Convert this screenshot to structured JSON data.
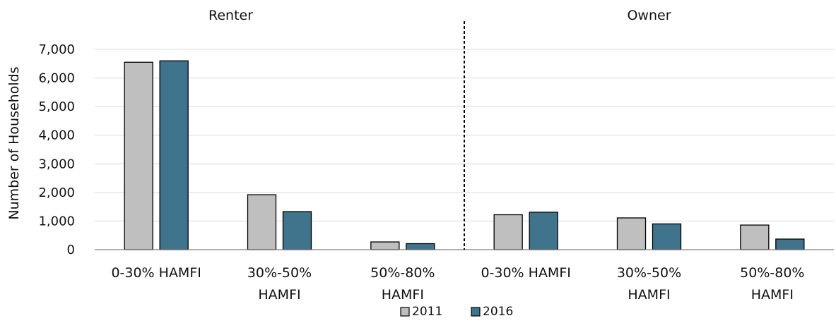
{
  "chart_data": {
    "type": "bar",
    "ylabel": "Number of Households",
    "ylim": [
      0,
      7000
    ],
    "yticks": [
      "0",
      "1,000",
      "2,000",
      "3,000",
      "4,000",
      "5,000",
      "6,000",
      "7,000"
    ],
    "grid": true,
    "legend_position": "bottom-center",
    "groups": [
      {
        "label": "Renter",
        "categories": [
          [
            "0-30% HAMFI"
          ],
          [
            "30%-50%",
            "HAMFI"
          ],
          [
            "50%-80%",
            "HAMFI"
          ]
        ],
        "series": [
          {
            "name": "2011",
            "values": [
              6550,
              1920,
              270
            ]
          },
          {
            "name": "2016",
            "values": [
              6600,
              1330,
              210
            ]
          }
        ]
      },
      {
        "label": "Owner",
        "categories": [
          [
            "0-30% HAMFI"
          ],
          [
            "30%-50%",
            "HAMFI"
          ],
          [
            "50%-80%",
            "HAMFI"
          ]
        ],
        "series": [
          {
            "name": "2011",
            "values": [
              1220,
              1110,
              860
            ]
          },
          {
            "name": "2016",
            "values": [
              1310,
              900,
              370
            ]
          }
        ]
      }
    ],
    "legend": [
      "2011",
      "2016"
    ],
    "colors": {
      "2011": "#bfbfbf",
      "2016": "#40748c",
      "grid": "#d9d9d9",
      "axis": "#7f7f7f",
      "divider": "#000000"
    }
  }
}
